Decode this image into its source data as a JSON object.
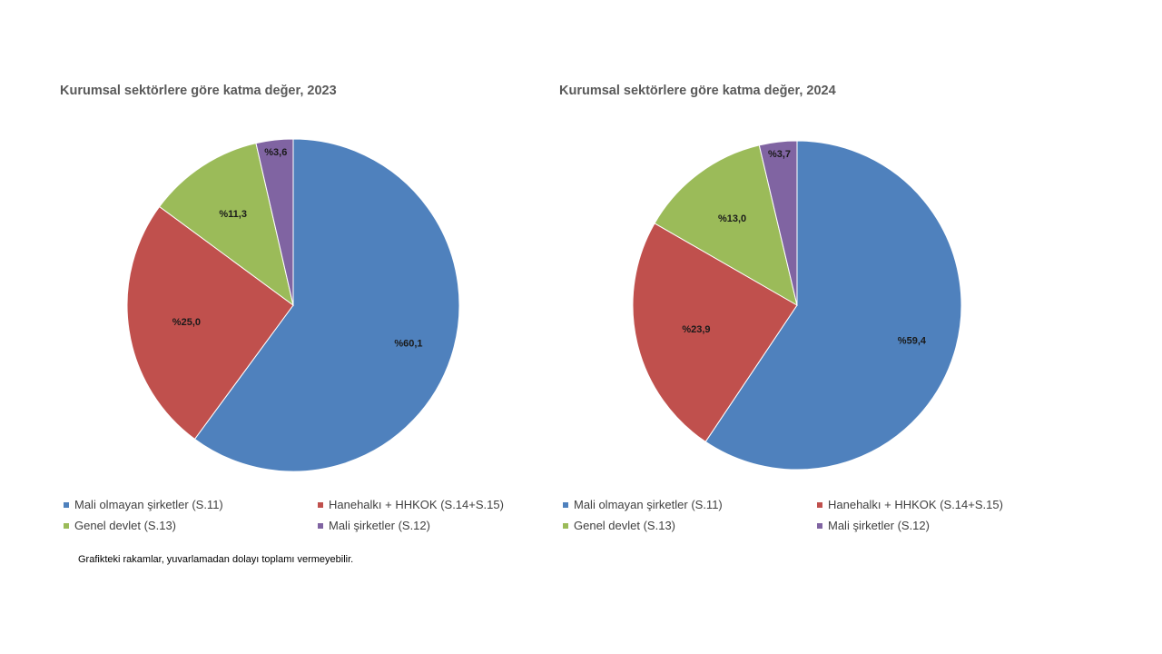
{
  "chart_data": [
    {
      "type": "pie",
      "title": "Kurumsal sektörlere göre katma değer, 2023",
      "categories": [
        "Mali olmayan şirketler (S.11)",
        "Hanehalkı + HHKOK (S.14+S.15)",
        "Genel devlet (S.13)",
        "Mali şirketler (S.12)"
      ],
      "values": [
        60.1,
        25.0,
        11.3,
        3.6
      ],
      "data_labels": [
        "%60,1",
        "%25,0",
        "%11,3",
        "%3,6"
      ],
      "colors": [
        "#4F81BD",
        "#C0504D",
        "#9BBB59",
        "#8064A2"
      ],
      "legend": "bottom"
    },
    {
      "type": "pie",
      "title": "Kurumsal sektörlere göre katma değer, 2024",
      "categories": [
        "Mali olmayan şirketler (S.11)",
        "Hanehalkı + HHKOK (S.14+S.15)",
        "Genel devlet (S.13)",
        "Mali şirketler (S.12)"
      ],
      "values": [
        59.4,
        23.9,
        13.0,
        3.7
      ],
      "data_labels": [
        "%59,4",
        "%23,9",
        "%13,0",
        "%3,7"
      ],
      "colors": [
        "#4F81BD",
        "#C0504D",
        "#9BBB59",
        "#8064A2"
      ],
      "legend": "bottom"
    }
  ],
  "footnote": "Grafikteki rakamlar, yuvarlamadan dolayı toplamı vermeyebilir."
}
